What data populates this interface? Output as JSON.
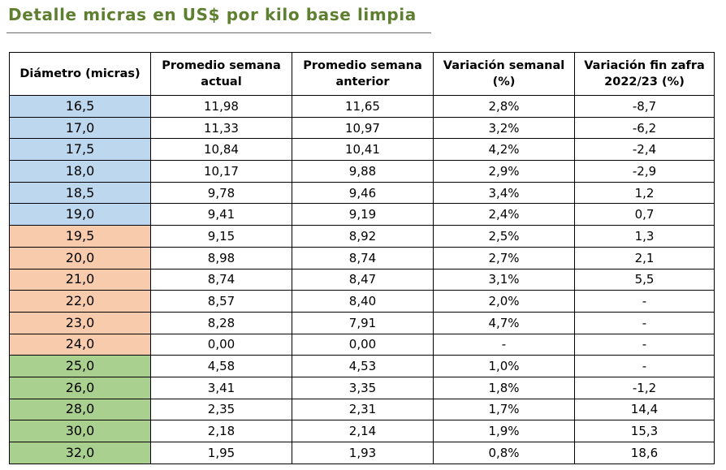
{
  "title": "Detalle micras en US$ por kilo base limpia",
  "colors": {
    "title": "#5e7f2f",
    "blue": "#bdd7ee",
    "orange": "#f8cbad",
    "green": "#a9d08e"
  },
  "table": {
    "headers": [
      "Diámetro (micras)",
      "Promedio semana actual",
      "Promedio semana anterior",
      "Variación semanal (%)",
      "Variación fin zafra 2022/23 (%)"
    ],
    "rows": [
      {
        "group": "blue",
        "cells": [
          "16,5",
          "11,98",
          "11,65",
          "2,8%",
          "-8,7"
        ]
      },
      {
        "group": "blue",
        "cells": [
          "17,0",
          "11,33",
          "10,97",
          "3,2%",
          "-6,2"
        ]
      },
      {
        "group": "blue",
        "cells": [
          "17,5",
          "10,84",
          "10,41",
          "4,2%",
          "-2,4"
        ]
      },
      {
        "group": "blue",
        "cells": [
          "18,0",
          "10,17",
          "9,88",
          "2,9%",
          "-2,9"
        ]
      },
      {
        "group": "blue",
        "cells": [
          "18,5",
          "9,78",
          "9,46",
          "3,4%",
          "1,2"
        ]
      },
      {
        "group": "blue",
        "cells": [
          "19,0",
          "9,41",
          "9,19",
          "2,4%",
          "0,7"
        ]
      },
      {
        "group": "orange",
        "cells": [
          "19,5",
          "9,15",
          "8,92",
          "2,5%",
          "1,3"
        ]
      },
      {
        "group": "orange",
        "cells": [
          "20,0",
          "8,98",
          "8,74",
          "2,7%",
          "2,1"
        ]
      },
      {
        "group": "orange",
        "cells": [
          "21,0",
          "8,74",
          "8,47",
          "3,1%",
          "5,5"
        ]
      },
      {
        "group": "orange",
        "cells": [
          "22,0",
          "8,57",
          "8,40",
          "2,0%",
          "-"
        ]
      },
      {
        "group": "orange",
        "cells": [
          "23,0",
          "8,28",
          "7,91",
          "4,7%",
          "-"
        ]
      },
      {
        "group": "orange",
        "cells": [
          "24,0",
          "0,00",
          "0,00",
          "-",
          "-"
        ]
      },
      {
        "group": "green",
        "cells": [
          "25,0",
          "4,58",
          "4,53",
          "1,0%",
          "-"
        ]
      },
      {
        "group": "green",
        "cells": [
          "26,0",
          "3,41",
          "3,35",
          "1,8%",
          "-1,2"
        ]
      },
      {
        "group": "green",
        "cells": [
          "28,0",
          "2,35",
          "2,31",
          "1,7%",
          "14,4"
        ]
      },
      {
        "group": "green",
        "cells": [
          "30,0",
          "2,18",
          "2,14",
          "1,9%",
          "15,3"
        ]
      },
      {
        "group": "green",
        "cells": [
          "32,0",
          "1,95",
          "1,93",
          "0,8%",
          "18,6"
        ]
      }
    ]
  }
}
